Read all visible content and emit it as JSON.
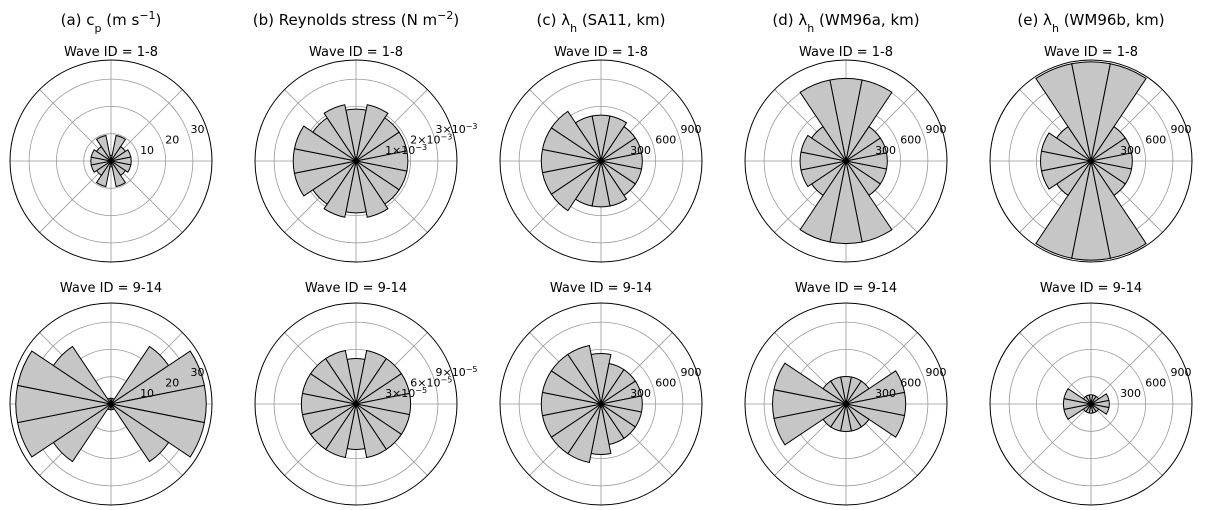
{
  "chart_data": [
    {
      "type": "polar-bar",
      "panel": "a",
      "title": "(a) c_p (m s^-1)",
      "radial_ticks": [
        "10",
        "20",
        "30"
      ],
      "rlim": [
        0,
        35
      ],
      "rows": [
        {
          "subtitle": "Wave ID = 1-8",
          "sectors": [
            {
              "direction_deg": 0,
              "value": 2
            },
            {
              "direction_deg": 22.5,
              "value": 9
            },
            {
              "direction_deg": 45,
              "value": 6
            },
            {
              "direction_deg": 67.5,
              "value": 7
            },
            {
              "direction_deg": 90,
              "value": 7
            },
            {
              "direction_deg": 112.5,
              "value": 7
            },
            {
              "direction_deg": 135,
              "value": 6
            },
            {
              "direction_deg": 157.5,
              "value": 9
            },
            {
              "direction_deg": 180,
              "value": 2
            },
            {
              "direction_deg": 202.5,
              "value": 9
            },
            {
              "direction_deg": 225,
              "value": 6
            },
            {
              "direction_deg": 247.5,
              "value": 7
            },
            {
              "direction_deg": 270,
              "value": 7
            },
            {
              "direction_deg": 292.5,
              "value": 7
            },
            {
              "direction_deg": 315,
              "value": 6
            },
            {
              "direction_deg": 337.5,
              "value": 9
            }
          ]
        },
        {
          "subtitle": "Wave ID = 9-14",
          "sectors": [
            {
              "direction_deg": 0,
              "value": 2
            },
            {
              "direction_deg": 22.5,
              "value": 2
            },
            {
              "direction_deg": 45,
              "value": 24
            },
            {
              "direction_deg": 67.5,
              "value": 33
            },
            {
              "direction_deg": 90,
              "value": 33
            },
            {
              "direction_deg": 112.5,
              "value": 33
            },
            {
              "direction_deg": 135,
              "value": 24
            },
            {
              "direction_deg": 157.5,
              "value": 2
            },
            {
              "direction_deg": 180,
              "value": 2
            },
            {
              "direction_deg": 202.5,
              "value": 2
            },
            {
              "direction_deg": 225,
              "value": 24
            },
            {
              "direction_deg": 247.5,
              "value": 33
            },
            {
              "direction_deg": 270,
              "value": 33
            },
            {
              "direction_deg": 292.5,
              "value": 33
            },
            {
              "direction_deg": 315,
              "value": 24
            },
            {
              "direction_deg": 337.5,
              "value": 2
            }
          ]
        }
      ]
    },
    {
      "type": "polar-bar",
      "panel": "b",
      "title": "(b) Reynolds stress (N m^-2)",
      "rows": [
        {
          "subtitle": "Wave ID = 1-8",
          "radial_ticks": [
            "1×10^-3",
            "2×10^-3",
            "3×10^-3"
          ],
          "rlim": [
            0,
            0.0037
          ],
          "sectors": [
            {
              "direction_deg": 0,
              "value": 0.0019
            },
            {
              "direction_deg": 22.5,
              "value": 0.0021
            },
            {
              "direction_deg": 45,
              "value": 0.0019
            },
            {
              "direction_deg": 67.5,
              "value": 0.0019
            },
            {
              "direction_deg": 90,
              "value": 0.0019
            },
            {
              "direction_deg": 112.5,
              "value": 0.0019
            },
            {
              "direction_deg": 135,
              "value": 0.0019
            },
            {
              "direction_deg": 157.5,
              "value": 0.0021
            },
            {
              "direction_deg": 180,
              "value": 0.0019
            },
            {
              "direction_deg": 202.5,
              "value": 0.0021
            },
            {
              "direction_deg": 225,
              "value": 0.0019
            },
            {
              "direction_deg": 247.5,
              "value": 0.0023
            },
            {
              "direction_deg": 270,
              "value": 0.0023
            },
            {
              "direction_deg": 292.5,
              "value": 0.0023
            },
            {
              "direction_deg": 315,
              "value": 0.0019
            },
            {
              "direction_deg": 337.5,
              "value": 0.0021
            }
          ]
        },
        {
          "subtitle": "Wave ID = 9-14",
          "radial_ticks": [
            "3×10^-5",
            "6×10^-5",
            "9×10^-5"
          ],
          "rlim": [
            0,
            0.000111
          ],
          "sectors": [
            {
              "direction_deg": 0,
              "value": 5e-05
            },
            {
              "direction_deg": 22.5,
              "value": 6e-05
            },
            {
              "direction_deg": 45,
              "value": 6e-05
            },
            {
              "direction_deg": 67.5,
              "value": 6e-05
            },
            {
              "direction_deg": 90,
              "value": 6e-05
            },
            {
              "direction_deg": 112.5,
              "value": 6e-05
            },
            {
              "direction_deg": 135,
              "value": 6e-05
            },
            {
              "direction_deg": 157.5,
              "value": 6e-05
            },
            {
              "direction_deg": 180,
              "value": 5e-05
            },
            {
              "direction_deg": 202.5,
              "value": 6e-05
            },
            {
              "direction_deg": 225,
              "value": 6e-05
            },
            {
              "direction_deg": 247.5,
              "value": 6e-05
            },
            {
              "direction_deg": 270,
              "value": 6e-05
            },
            {
              "direction_deg": 292.5,
              "value": 6e-05
            },
            {
              "direction_deg": 315,
              "value": 6e-05
            },
            {
              "direction_deg": 337.5,
              "value": 6e-05
            }
          ]
        }
      ]
    },
    {
      "type": "polar-bar",
      "panel": "c",
      "title": "(c) λ_h (SA11, km)",
      "radial_ticks": [
        "300",
        "600",
        "900"
      ],
      "rlim": [
        0,
        1100
      ],
      "rows": [
        {
          "subtitle": "Wave ID = 1-8",
          "sectors": [
            {
              "direction_deg": 0,
              "value": 500
            },
            {
              "direction_deg": 22.5,
              "value": 500
            },
            {
              "direction_deg": 45,
              "value": 450
            },
            {
              "direction_deg": 67.5,
              "value": 450
            },
            {
              "direction_deg": 90,
              "value": 450
            },
            {
              "direction_deg": 112.5,
              "value": 450
            },
            {
              "direction_deg": 135,
              "value": 450
            },
            {
              "direction_deg": 157.5,
              "value": 500
            },
            {
              "direction_deg": 180,
              "value": 500
            },
            {
              "direction_deg": 202.5,
              "value": 500
            },
            {
              "direction_deg": 225,
              "value": 650
            },
            {
              "direction_deg": 247.5,
              "value": 650
            },
            {
              "direction_deg": 270,
              "value": 650
            },
            {
              "direction_deg": 292.5,
              "value": 650
            },
            {
              "direction_deg": 315,
              "value": 650
            },
            {
              "direction_deg": 337.5,
              "value": 500
            }
          ]
        },
        {
          "subtitle": "Wave ID = 9-14",
          "sectors": [
            {
              "direction_deg": 0,
              "value": 550
            },
            {
              "direction_deg": 22.5,
              "value": 450
            },
            {
              "direction_deg": 45,
              "value": 450
            },
            {
              "direction_deg": 67.5,
              "value": 450
            },
            {
              "direction_deg": 90,
              "value": 450
            },
            {
              "direction_deg": 112.5,
              "value": 450
            },
            {
              "direction_deg": 135,
              "value": 450
            },
            {
              "direction_deg": 157.5,
              "value": 450
            },
            {
              "direction_deg": 180,
              "value": 550
            },
            {
              "direction_deg": 202.5,
              "value": 650
            },
            {
              "direction_deg": 225,
              "value": 650
            },
            {
              "direction_deg": 247.5,
              "value": 650
            },
            {
              "direction_deg": 270,
              "value": 650
            },
            {
              "direction_deg": 292.5,
              "value": 650
            },
            {
              "direction_deg": 315,
              "value": 650
            },
            {
              "direction_deg": 337.5,
              "value": 650
            }
          ]
        }
      ]
    },
    {
      "type": "polar-bar",
      "panel": "d",
      "title": "(d) λ_h (WM96a, km)",
      "radial_ticks": [
        "300",
        "600",
        "900"
      ],
      "rlim": [
        0,
        1100
      ],
      "rows": [
        {
          "subtitle": "Wave ID = 1-8",
          "sectors": [
            {
              "direction_deg": 0,
              "value": 900
            },
            {
              "direction_deg": 22.5,
              "value": 900
            },
            {
              "direction_deg": 45,
              "value": 450
            },
            {
              "direction_deg": 67.5,
              "value": 450
            },
            {
              "direction_deg": 90,
              "value": 450
            },
            {
              "direction_deg": 112.5,
              "value": 450
            },
            {
              "direction_deg": 135,
              "value": 450
            },
            {
              "direction_deg": 157.5,
              "value": 900
            },
            {
              "direction_deg": 180,
              "value": 900
            },
            {
              "direction_deg": 202.5,
              "value": 900
            },
            {
              "direction_deg": 225,
              "value": 450
            },
            {
              "direction_deg": 247.5,
              "value": 500
            },
            {
              "direction_deg": 270,
              "value": 500
            },
            {
              "direction_deg": 292.5,
              "value": 500
            },
            {
              "direction_deg": 315,
              "value": 450
            },
            {
              "direction_deg": 337.5,
              "value": 900
            }
          ]
        },
        {
          "subtitle": "Wave ID = 9-14",
          "sectors": [
            {
              "direction_deg": 0,
              "value": 300
            },
            {
              "direction_deg": 22.5,
              "value": 300
            },
            {
              "direction_deg": 45,
              "value": 300
            },
            {
              "direction_deg": 67.5,
              "value": 650
            },
            {
              "direction_deg": 90,
              "value": 650
            },
            {
              "direction_deg": 112.5,
              "value": 650
            },
            {
              "direction_deg": 135,
              "value": 300
            },
            {
              "direction_deg": 157.5,
              "value": 300
            },
            {
              "direction_deg": 180,
              "value": 300
            },
            {
              "direction_deg": 202.5,
              "value": 300
            },
            {
              "direction_deg": 225,
              "value": 300
            },
            {
              "direction_deg": 247.5,
              "value": 800
            },
            {
              "direction_deg": 270,
              "value": 800
            },
            {
              "direction_deg": 292.5,
              "value": 800
            },
            {
              "direction_deg": 315,
              "value": 300
            },
            {
              "direction_deg": 337.5,
              "value": 300
            }
          ]
        }
      ]
    },
    {
      "type": "polar-bar",
      "panel": "e",
      "title": "(e) λ_h (WM96b, km)",
      "radial_ticks": [
        "300",
        "600",
        "900"
      ],
      "rlim": [
        0,
        1100
      ],
      "rows": [
        {
          "subtitle": "Wave ID = 1-8",
          "sectors": [
            {
              "direction_deg": 0,
              "value": 1080
            },
            {
              "direction_deg": 22.5,
              "value": 1080
            },
            {
              "direction_deg": 45,
              "value": 450
            },
            {
              "direction_deg": 67.5,
              "value": 450
            },
            {
              "direction_deg": 90,
              "value": 450
            },
            {
              "direction_deg": 112.5,
              "value": 450
            },
            {
              "direction_deg": 135,
              "value": 450
            },
            {
              "direction_deg": 157.5,
              "value": 1080
            },
            {
              "direction_deg": 180,
              "value": 1080
            },
            {
              "direction_deg": 202.5,
              "value": 1080
            },
            {
              "direction_deg": 225,
              "value": 450
            },
            {
              "direction_deg": 247.5,
              "value": 550
            },
            {
              "direction_deg": 270,
              "value": 550
            },
            {
              "direction_deg": 292.5,
              "value": 550
            },
            {
              "direction_deg": 315,
              "value": 450
            },
            {
              "direction_deg": 337.5,
              "value": 1080
            }
          ]
        },
        {
          "subtitle": "Wave ID = 9-14",
          "sectors": [
            {
              "direction_deg": 0,
              "value": 100
            },
            {
              "direction_deg": 22.5,
              "value": 100
            },
            {
              "direction_deg": 45,
              "value": 100
            },
            {
              "direction_deg": 67.5,
              "value": 200
            },
            {
              "direction_deg": 90,
              "value": 200
            },
            {
              "direction_deg": 112.5,
              "value": 200
            },
            {
              "direction_deg": 135,
              "value": 100
            },
            {
              "direction_deg": 157.5,
              "value": 100
            },
            {
              "direction_deg": 180,
              "value": 100
            },
            {
              "direction_deg": 202.5,
              "value": 100
            },
            {
              "direction_deg": 225,
              "value": 100
            },
            {
              "direction_deg": 247.5,
              "value": 300
            },
            {
              "direction_deg": 270,
              "value": 300
            },
            {
              "direction_deg": 292.5,
              "value": 300
            },
            {
              "direction_deg": 315,
              "value": 100
            },
            {
              "direction_deg": 337.5,
              "value": 100
            }
          ]
        }
      ]
    }
  ],
  "colors": {
    "bar_fill": "#c6c6c6",
    "bar_edge": "#000000",
    "grid": "#9a9a9a",
    "outer_circle": "#000000"
  }
}
